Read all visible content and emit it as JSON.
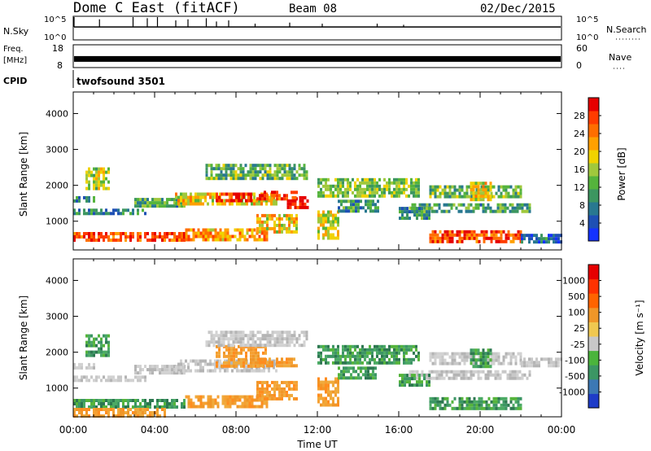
{
  "header": {
    "title": "Dome C East (fitACF)",
    "beam": "Beam 08",
    "date": "02/Dec/2015"
  },
  "chart_data": [
    {
      "type": "line",
      "panel": "nsky",
      "left_label": "N.Sky",
      "right_label": "N.Search",
      "y_ticks_left": [
        "10^5",
        "10^0"
      ],
      "y_ticks_right": [
        "10^5",
        "10^0"
      ],
      "baseline_level": 0.55,
      "spikes": [
        {
          "x": 0.0,
          "level": 1.0
        },
        {
          "x": 1.25,
          "level": 0.9
        },
        {
          "x": 2.9,
          "level": 1.0
        },
        {
          "x": 3.6,
          "level": 0.95
        },
        {
          "x": 4.1,
          "level": 1.0
        },
        {
          "x": 5.0,
          "level": 0.85
        },
        {
          "x": 5.6,
          "level": 0.9
        },
        {
          "x": 6.5,
          "level": 0.95
        },
        {
          "x": 7.0,
          "level": 0.8
        },
        {
          "x": 7.6,
          "level": 0.85
        },
        {
          "x": 8.9,
          "level": 0.7
        },
        {
          "x": 10.6,
          "level": 0.75
        },
        {
          "x": 12.2,
          "level": 0.7
        },
        {
          "x": 14.9,
          "level": 0.7
        },
        {
          "x": 16.2,
          "level": 0.65
        }
      ]
    },
    {
      "type": "bar",
      "panel": "frequency",
      "left_label_lines": [
        "Freq.",
        "[MHz]"
      ],
      "right_label": "Nave",
      "y_ticks_left": [
        "18",
        "8"
      ],
      "y_ticks_right": [
        "60",
        "0"
      ],
      "band_level": 0.35
    },
    {
      "type": "table",
      "panel": "cpid",
      "label": "CPID",
      "segments": [
        {
          "start": 0,
          "end": 24,
          "text": "twofsound 3501"
        }
      ]
    },
    {
      "type": "heatmap",
      "panel": "power",
      "ylabel": "Slant Range [km]",
      "ylim": [
        200,
        4600
      ],
      "y_ticks": [
        1000,
        2000,
        3000,
        4000
      ],
      "xlim": [
        0,
        24
      ],
      "colorbar": {
        "label": "Power [dB]",
        "ticks": [
          "28",
          "24",
          "20",
          "16",
          "12",
          "8",
          "4"
        ],
        "colors": [
          "#1432ff",
          "#1e50b4",
          "#287890",
          "#3c9660",
          "#55b43c",
          "#a0c83c",
          "#f0d200",
          "#ffa000",
          "#ff6e00",
          "#ff3c00",
          "#e60000"
        ]
      },
      "bands": [
        {
          "x": [
            0.0,
            5.5
          ],
          "range": [
            450,
            700
          ],
          "level": 0.85
        },
        {
          "x": [
            0.0,
            3.5
          ],
          "range": [
            1200,
            1350
          ],
          "level": 0.25
        },
        {
          "x": [
            0.0,
            1.0
          ],
          "range": [
            1550,
            1700
          ],
          "level": 0.3
        },
        {
          "x": [
            0.6,
            1.8
          ],
          "range": [
            1900,
            2500
          ],
          "level": 0.5
        },
        {
          "x": [
            3.0,
            5.5
          ],
          "range": [
            1450,
            1650
          ],
          "level": 0.35
        },
        {
          "x": [
            5.0,
            10.0
          ],
          "range": [
            1500,
            1800
          ],
          "level": 0.6
        },
        {
          "x": [
            7.0,
            8.8
          ],
          "range": [
            1600,
            1800
          ],
          "level": 0.9
        },
        {
          "x": [
            6.5,
            11.5
          ],
          "range": [
            2200,
            2600
          ],
          "level": 0.4
        },
        {
          "x": [
            9.0,
            11.0
          ],
          "range": [
            1650,
            1850
          ],
          "level": 0.85
        },
        {
          "x": [
            10.5,
            11.5
          ],
          "range": [
            1400,
            1700
          ],
          "level": 0.95
        },
        {
          "x": [
            5.5,
            9.5
          ],
          "range": [
            500,
            800
          ],
          "level": 0.7
        },
        {
          "x": [
            9.0,
            11.0
          ],
          "range": [
            700,
            1200
          ],
          "level": 0.6
        },
        {
          "x": [
            12.0,
            13.0
          ],
          "range": [
            500,
            1300
          ],
          "level": 0.55
        },
        {
          "x": [
            12.0,
            17.0
          ],
          "range": [
            1700,
            2200
          ],
          "level": 0.45
        },
        {
          "x": [
            13.0,
            15.0
          ],
          "range": [
            1300,
            1600
          ],
          "level": 0.3
        },
        {
          "x": [
            16.5,
            22.5
          ],
          "range": [
            1250,
            1500
          ],
          "level": 0.35
        },
        {
          "x": [
            17.5,
            22.0
          ],
          "range": [
            1650,
            2000
          ],
          "level": 0.4
        },
        {
          "x": [
            19.5,
            20.5
          ],
          "range": [
            1600,
            2100
          ],
          "level": 0.6
        },
        {
          "x": [
            17.5,
            22.0
          ],
          "range": [
            450,
            750
          ],
          "level": 0.85
        },
        {
          "x": [
            22.0,
            24.0
          ],
          "range": [
            400,
            650
          ],
          "level": 0.2
        },
        {
          "x": [
            16.0,
            17.5
          ],
          "range": [
            1100,
            1400
          ],
          "level": 0.3
        }
      ]
    },
    {
      "type": "heatmap",
      "panel": "velocity",
      "ylabel": "Slant Range [km]",
      "ylim": [
        200,
        4600
      ],
      "y_ticks": [
        1000,
        2000,
        3000,
        4000
      ],
      "xlim": [
        0,
        24
      ],
      "colorbar": {
        "label": "Velocity [m s⁻¹]",
        "ticks": [
          "1000",
          "500",
          "100",
          "25",
          "-25",
          "-100",
          "-500",
          "-1000"
        ],
        "colors": [
          "#1e3cc8",
          "#3c78b4",
          "#3c9664",
          "#4bb43c",
          "#c8c8c8",
          "#f0c850",
          "#f09628",
          "#ff6400",
          "#ff3200",
          "#e60000"
        ]
      },
      "bands": [
        {
          "x": [
            0.0,
            5.5
          ],
          "range": [
            450,
            700
          ],
          "color": "green"
        },
        {
          "x": [
            0.0,
            4.5
          ],
          "range": [
            250,
            450
          ],
          "color": "orange"
        },
        {
          "x": [
            0.0,
            3.5
          ],
          "range": [
            1200,
            1350
          ],
          "color": "grey"
        },
        {
          "x": [
            0.0,
            1.0
          ],
          "range": [
            1550,
            1700
          ],
          "color": "grey"
        },
        {
          "x": [
            0.6,
            1.8
          ],
          "range": [
            1900,
            2500
          ],
          "color": "green"
        },
        {
          "x": [
            3.0,
            5.5
          ],
          "range": [
            1450,
            1650
          ],
          "color": "grey"
        },
        {
          "x": [
            5.0,
            10.0
          ],
          "range": [
            1500,
            1800
          ],
          "color": "grey"
        },
        {
          "x": [
            7.0,
            9.5
          ],
          "range": [
            1600,
            2200
          ],
          "color": "orange"
        },
        {
          "x": [
            6.5,
            11.5
          ],
          "range": [
            2200,
            2600
          ],
          "color": "grey"
        },
        {
          "x": [
            9.0,
            11.0
          ],
          "range": [
            1650,
            1850
          ],
          "color": "orange"
        },
        {
          "x": [
            5.5,
            9.5
          ],
          "range": [
            500,
            800
          ],
          "color": "orange"
        },
        {
          "x": [
            9.0,
            11.0
          ],
          "range": [
            700,
            1200
          ],
          "color": "orange"
        },
        {
          "x": [
            12.0,
            13.0
          ],
          "range": [
            500,
            1300
          ],
          "color": "orange"
        },
        {
          "x": [
            12.0,
            17.0
          ],
          "range": [
            1700,
            2200
          ],
          "color": "green"
        },
        {
          "x": [
            13.0,
            15.0
          ],
          "range": [
            1300,
            1600
          ],
          "color": "green"
        },
        {
          "x": [
            16.5,
            22.5
          ],
          "range": [
            1250,
            1500
          ],
          "color": "grey"
        },
        {
          "x": [
            17.5,
            22.0
          ],
          "range": [
            1650,
            2000
          ],
          "color": "grey"
        },
        {
          "x": [
            19.5,
            20.5
          ],
          "range": [
            1600,
            2100
          ],
          "color": "green"
        },
        {
          "x": [
            17.5,
            22.0
          ],
          "range": [
            450,
            750
          ],
          "color": "green"
        },
        {
          "x": [
            22.0,
            24.0
          ],
          "range": [
            1650,
            1850
          ],
          "color": "grey"
        },
        {
          "x": [
            16.0,
            17.5
          ],
          "range": [
            1100,
            1400
          ],
          "color": "green"
        }
      ]
    }
  ],
  "x_axis": {
    "label": "Time UT",
    "ticks": [
      "00:00",
      "04:00",
      "08:00",
      "12:00",
      "16:00",
      "20:00",
      "00:00"
    ]
  }
}
